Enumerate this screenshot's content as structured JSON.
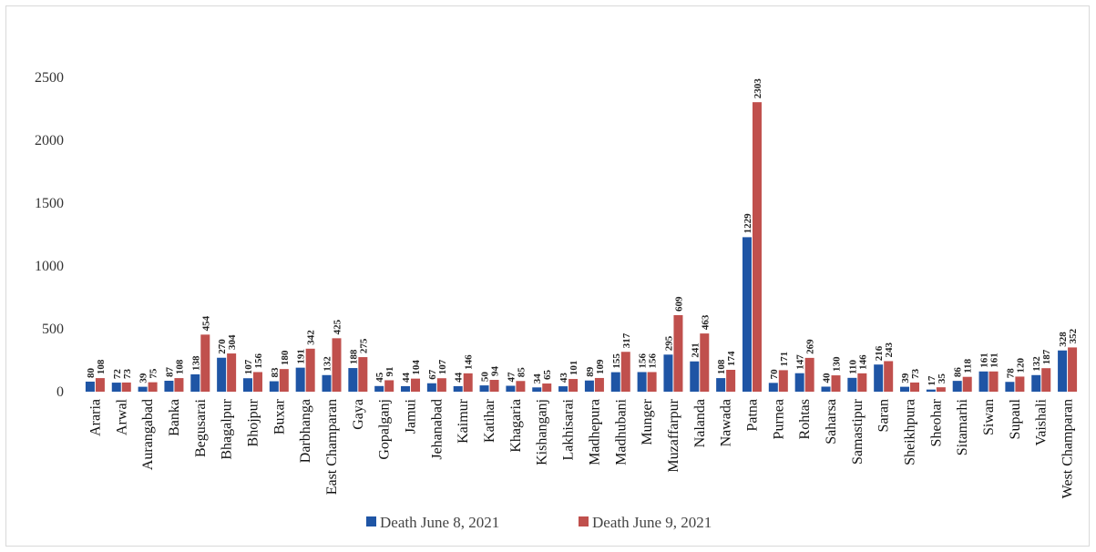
{
  "chart_data": {
    "type": "bar",
    "categories": [
      "Araria",
      "Arwal",
      "Aurangabad",
      "Banka",
      "Begusarai",
      "Bhagalpur",
      "Bhojpur",
      "Buxar",
      "Darbhanga",
      "East Champaran",
      "Gaya",
      "Gopalganj",
      "Jamui",
      "Jehanabad",
      "Kaimur",
      "Katihar",
      "Khagaria",
      "Kishanganj",
      "Lakhisarai",
      "Madhepura",
      "Madhubani",
      "Munger",
      "Muzaffarpur",
      "Nalanda",
      "Nawada",
      "Patna",
      "Purnea",
      "Rohtas",
      "Saharsa",
      "Samastipur",
      "Saran",
      "Sheikhpura",
      "Sheohar",
      "Sitamarhi",
      "Siwan",
      "Supaul",
      "Vaishali",
      "West Champaran"
    ],
    "series": [
      {
        "name": "Death June 8, 2021",
        "color": "#1f55a5",
        "values": [
          80,
          72,
          39,
          87,
          138,
          270,
          107,
          83,
          191,
          132,
          188,
          45,
          44,
          67,
          44,
          50,
          47,
          34,
          43,
          89,
          155,
          156,
          295,
          241,
          108,
          1229,
          70,
          147,
          40,
          110,
          216,
          39,
          17,
          86,
          161,
          78,
          132,
          328
        ]
      },
      {
        "name": "Death June 9, 2021",
        "color": "#c0504d",
        "values": [
          108,
          73,
          75,
          108,
          454,
          304,
          156,
          180,
          342,
          425,
          275,
          91,
          104,
          107,
          146,
          94,
          85,
          65,
          101,
          109,
          317,
          156,
          609,
          463,
          174,
          2303,
          171,
          269,
          130,
          146,
          243,
          73,
          35,
          118,
          161,
          120,
          187,
          352
        ]
      }
    ],
    "ylim": [
      0,
      2500
    ],
    "yticks": [
      "0",
      "500",
      "1000",
      "1500",
      "2000",
      "2500"
    ],
    "grid": false,
    "legend": "bottom",
    "data_labels": true
  }
}
